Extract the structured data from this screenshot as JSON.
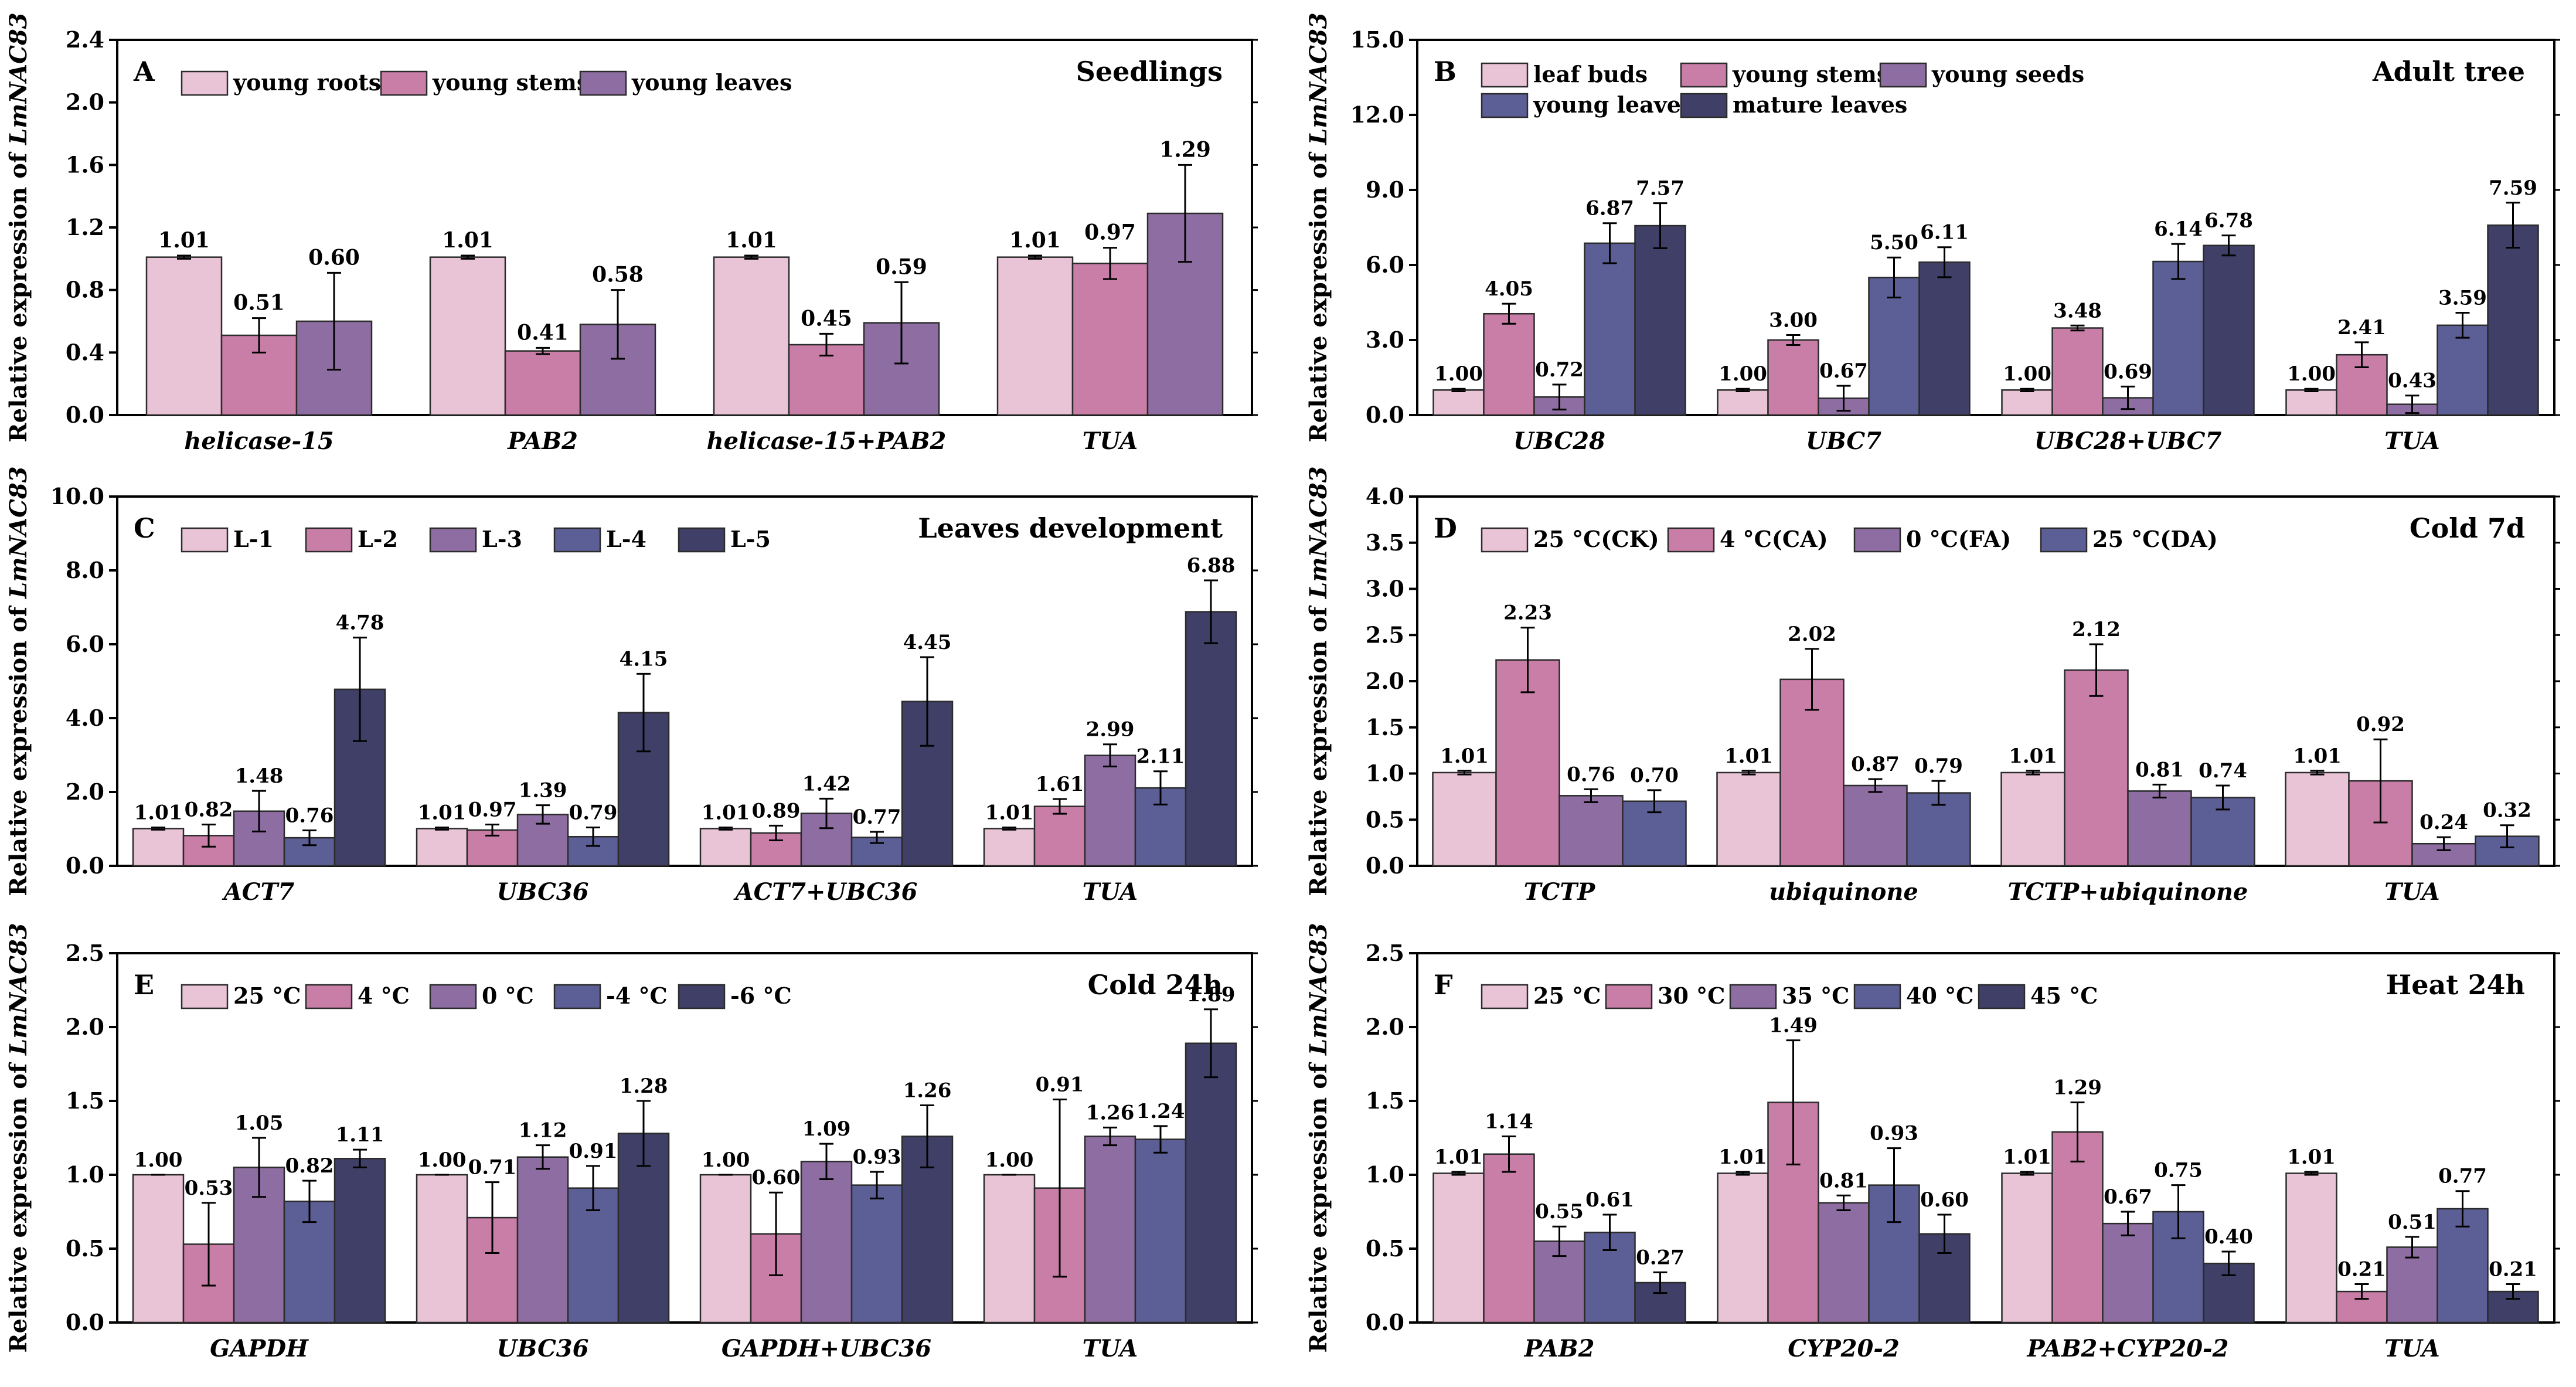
{
  "figure": {
    "bar_outline": "#2b2b2b",
    "axis_color": "#000000"
  },
  "chart_data": [
    {
      "panel": "A",
      "type": "bar",
      "title": "Seedlings",
      "ylabel_prefix": "Relative expression of ",
      "ylabel_gene": "LmNAC83",
      "ylim": [
        0,
        2.4
      ],
      "yticks": [
        0,
        0.4,
        0.8,
        1.2,
        1.6,
        2.0,
        2.4
      ],
      "ydecimals": 1,
      "legend_rows": [
        [
          0,
          1,
          2
        ]
      ],
      "categories": [
        "helicase-15",
        "PAB2",
        "helicase-15+PAB2",
        "TUA"
      ],
      "series": [
        {
          "name": "young roots",
          "color": "#e9c3d6",
          "values": [
            1.01,
            1.01,
            1.01,
            1.01
          ],
          "errors": [
            0.01,
            0.01,
            0.01,
            0.01
          ]
        },
        {
          "name": "young stems",
          "color": "#c97ea8",
          "values": [
            0.51,
            0.41,
            0.45,
            0.97
          ],
          "errors": [
            0.11,
            0.02,
            0.07,
            0.1
          ]
        },
        {
          "name": "young leaves",
          "color": "#8e6ea2",
          "values": [
            0.6,
            0.58,
            0.59,
            1.29
          ],
          "errors": [
            0.31,
            0.22,
            0.26,
            0.31
          ]
        }
      ]
    },
    {
      "panel": "B",
      "type": "bar",
      "title": "Adult tree",
      "ylabel_prefix": "Relative expression of ",
      "ylabel_gene": "LmNAC83",
      "ylim": [
        0,
        15
      ],
      "yticks": [
        0,
        3,
        6,
        9,
        12,
        15
      ],
      "ydecimals": 1,
      "legend_rows": [
        [
          0,
          1,
          2
        ],
        [
          3,
          4
        ]
      ],
      "categories": [
        "UBC28",
        "UBC7",
        "UBC28+UBC7",
        "TUA"
      ],
      "series": [
        {
          "name": "leaf buds",
          "color": "#e9c3d6",
          "values": [
            1.0,
            1.0,
            1.0,
            1.0
          ],
          "errors": [
            0.05,
            0.05,
            0.05,
            0.05
          ]
        },
        {
          "name": "young stems",
          "color": "#c97ea8",
          "values": [
            4.05,
            3.0,
            3.48,
            2.41
          ],
          "errors": [
            0.4,
            0.2,
            0.1,
            0.5
          ]
        },
        {
          "name": "young seeds",
          "color": "#8e6ea2",
          "values": [
            0.72,
            0.67,
            0.69,
            0.43
          ],
          "errors": [
            0.5,
            0.5,
            0.45,
            0.35
          ]
        },
        {
          "name": "young leaves",
          "color": "#5c5e96",
          "values": [
            6.87,
            5.5,
            6.14,
            3.59
          ],
          "errors": [
            0.8,
            0.8,
            0.7,
            0.5
          ]
        },
        {
          "name": "mature leaves",
          "color": "#3f3f67",
          "values": [
            7.57,
            6.11,
            6.78,
            7.59
          ],
          "errors": [
            0.9,
            0.6,
            0.4,
            0.9
          ]
        }
      ]
    },
    {
      "panel": "C",
      "type": "bar",
      "title": "Leaves development",
      "ylabel_prefix": "Relative expression of ",
      "ylabel_gene": "LmNAC83",
      "ylim": [
        0,
        10
      ],
      "yticks": [
        0,
        2,
        4,
        6,
        8,
        10
      ],
      "ydecimals": 1,
      "legend_rows": [
        [
          0,
          1,
          2,
          3,
          4
        ]
      ],
      "categories": [
        "ACT7",
        "UBC36",
        "ACT7+UBC36",
        "TUA"
      ],
      "series": [
        {
          "name": "L-1",
          "color": "#e9c3d6",
          "values": [
            1.01,
            1.01,
            1.01,
            1.01
          ],
          "errors": [
            0.03,
            0.03,
            0.03,
            0.03
          ]
        },
        {
          "name": "L-2",
          "color": "#c97ea8",
          "values": [
            0.82,
            0.97,
            0.89,
            1.61
          ],
          "errors": [
            0.3,
            0.15,
            0.2,
            0.2
          ]
        },
        {
          "name": "L-3",
          "color": "#8e6ea2",
          "values": [
            1.48,
            1.39,
            1.42,
            2.99
          ],
          "errors": [
            0.55,
            0.25,
            0.4,
            0.3
          ]
        },
        {
          "name": "L-4",
          "color": "#5c5e96",
          "values": [
            0.76,
            0.79,
            0.77,
            2.11
          ],
          "errors": [
            0.2,
            0.25,
            0.15,
            0.45
          ]
        },
        {
          "name": "L-5",
          "color": "#3f3f67",
          "values": [
            4.78,
            4.15,
            4.45,
            6.88
          ],
          "errors": [
            1.4,
            1.05,
            1.2,
            0.85
          ]
        }
      ]
    },
    {
      "panel": "D",
      "type": "bar",
      "title": "Cold 7d",
      "ylabel_prefix": "Relative expression of ",
      "ylabel_gene": "LmNAC83",
      "ylim": [
        0,
        4
      ],
      "yticks": [
        0,
        0.5,
        1.0,
        1.5,
        2.0,
        2.5,
        3.0,
        3.5,
        4.0
      ],
      "ydecimals": 1,
      "legend_rows": [
        [
          0,
          1,
          2,
          3
        ]
      ],
      "categories": [
        "TCTP",
        "ubiquinone",
        "TCTP+ubiquinone",
        "TUA"
      ],
      "series": [
        {
          "name": "25 °C(CK)",
          "color": "#e9c3d6",
          "values": [
            1.01,
            1.01,
            1.01,
            1.01
          ],
          "errors": [
            0.02,
            0.02,
            0.02,
            0.02
          ]
        },
        {
          "name": "4 °C(CA)",
          "color": "#c97ea8",
          "values": [
            2.23,
            2.02,
            2.12,
            0.92
          ],
          "errors": [
            0.35,
            0.33,
            0.28,
            0.45
          ]
        },
        {
          "name": "0 °C(FA)",
          "color": "#8e6ea2",
          "values": [
            0.76,
            0.87,
            0.81,
            0.24
          ],
          "errors": [
            0.07,
            0.07,
            0.07,
            0.07
          ]
        },
        {
          "name": "25 °C(DA)",
          "color": "#5c5e96",
          "values": [
            0.7,
            0.79,
            0.74,
            0.32
          ],
          "errors": [
            0.12,
            0.13,
            0.13,
            0.12
          ]
        }
      ]
    },
    {
      "panel": "E",
      "type": "bar",
      "title": "Cold 24h",
      "ylabel_prefix": "Relative expression of ",
      "ylabel_gene": "LmNAC83",
      "ylim": [
        0,
        2.5
      ],
      "yticks": [
        0,
        0.5,
        1.0,
        1.5,
        2.0,
        2.5
      ],
      "ydecimals": 1,
      "legend_rows": [
        [
          0,
          1,
          2,
          3,
          4
        ]
      ],
      "categories": [
        "GAPDH",
        "UBC36",
        "GAPDH+UBC36",
        "TUA"
      ],
      "series": [
        {
          "name": "25 °C",
          "color": "#e9c3d6",
          "values": [
            1.0,
            1.0,
            1.0,
            1.0
          ],
          "errors": [
            0.0,
            0.0,
            0.0,
            0.0
          ]
        },
        {
          "name": "4 °C",
          "color": "#c97ea8",
          "values": [
            0.53,
            0.71,
            0.6,
            0.91
          ],
          "errors": [
            0.28,
            0.24,
            0.28,
            0.6
          ]
        },
        {
          "name": "0 °C",
          "color": "#8e6ea2",
          "values": [
            1.05,
            1.12,
            1.09,
            1.26
          ],
          "errors": [
            0.2,
            0.08,
            0.12,
            0.06
          ]
        },
        {
          "name": "-4 °C",
          "color": "#5c5e96",
          "values": [
            0.82,
            0.91,
            0.93,
            1.24
          ],
          "errors": [
            0.14,
            0.15,
            0.09,
            0.09
          ]
        },
        {
          "name": "-6 °C",
          "color": "#3f3f67",
          "values": [
            1.11,
            1.28,
            1.26,
            1.89
          ],
          "errors": [
            0.06,
            0.22,
            0.21,
            0.23
          ]
        }
      ]
    },
    {
      "panel": "F",
      "type": "bar",
      "title": "Heat 24h",
      "ylabel_prefix": "Relative expression of ",
      "ylabel_gene": "LmNAC83",
      "ylim": [
        0,
        2.5
      ],
      "yticks": [
        0,
        0.5,
        1.0,
        1.5,
        2.0,
        2.5
      ],
      "ydecimals": 1,
      "legend_rows": [
        [
          0,
          1,
          2,
          3,
          4
        ]
      ],
      "categories": [
        "PAB2",
        "CYP20-2",
        "PAB2+CYP20-2",
        "TUA"
      ],
      "series": [
        {
          "name": "25 °C",
          "color": "#e9c3d6",
          "values": [
            1.01,
            1.01,
            1.01,
            1.01
          ],
          "errors": [
            0.01,
            0.01,
            0.01,
            0.01
          ]
        },
        {
          "name": "30 °C",
          "color": "#c97ea8",
          "values": [
            1.14,
            1.49,
            1.29,
            0.21
          ],
          "errors": [
            0.12,
            0.42,
            0.2,
            0.05
          ]
        },
        {
          "name": "35 °C",
          "color": "#8e6ea2",
          "values": [
            0.55,
            0.81,
            0.67,
            0.51
          ],
          "errors": [
            0.1,
            0.05,
            0.08,
            0.07
          ]
        },
        {
          "name": "40 °C",
          "color": "#5c5e96",
          "values": [
            0.61,
            0.93,
            0.75,
            0.77
          ],
          "errors": [
            0.12,
            0.25,
            0.18,
            0.12
          ]
        },
        {
          "name": "45 °C",
          "color": "#3f3f67",
          "values": [
            0.27,
            0.6,
            0.4,
            0.21
          ],
          "errors": [
            0.07,
            0.13,
            0.08,
            0.05
          ]
        }
      ]
    }
  ]
}
